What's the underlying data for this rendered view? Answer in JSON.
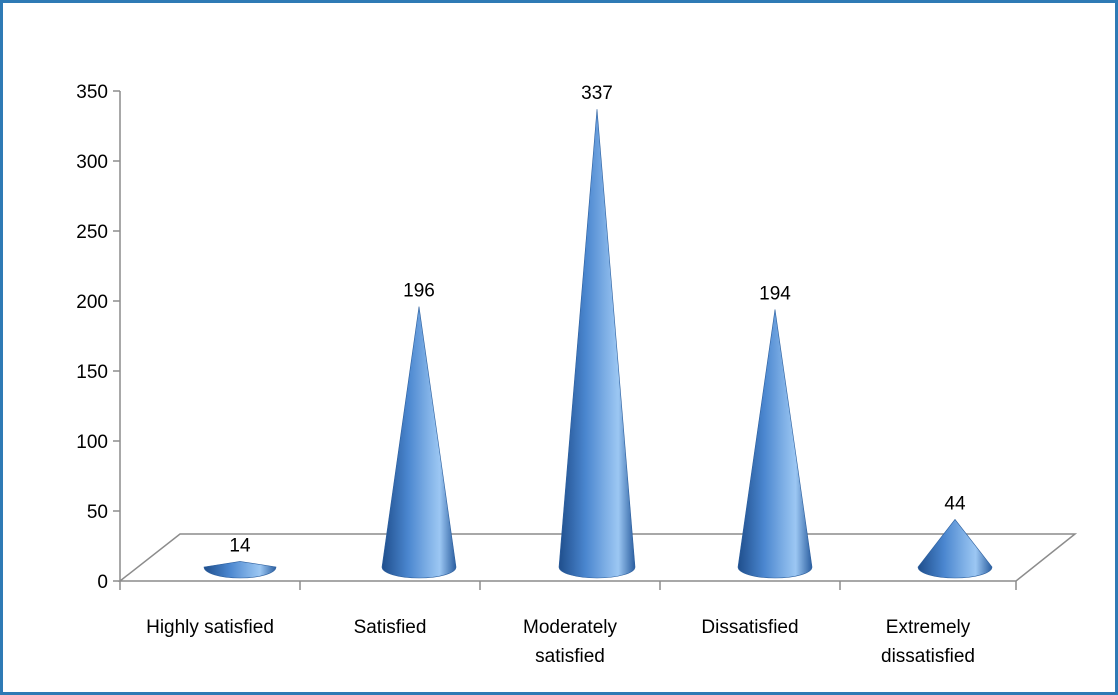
{
  "chart_data": {
    "type": "bar",
    "shape": "cone",
    "categories": [
      [
        "Highly satisfied"
      ],
      [
        "Satisfied"
      ],
      [
        "Moderately",
        "satisfied"
      ],
      [
        "Dissatisfied"
      ],
      [
        "Extremely",
        "dissatisfied"
      ]
    ],
    "values": [
      14,
      196,
      337,
      194,
      44
    ],
    "data_labels": [
      "14",
      "196",
      "337",
      "194",
      "44"
    ],
    "yticks": [
      "0",
      "50",
      "100",
      "150",
      "200",
      "250",
      "300",
      "350"
    ],
    "ylim": [
      0,
      350
    ],
    "title": "",
    "xlabel": "",
    "ylabel": "",
    "grid": false,
    "legend": "none",
    "colors": {
      "cone_dark": "#1f4e8c",
      "cone_mid": "#4a86cf",
      "cone_light": "#9cc7f3",
      "frame": "#2e7ab5",
      "axis": "#8c8c8c"
    }
  }
}
